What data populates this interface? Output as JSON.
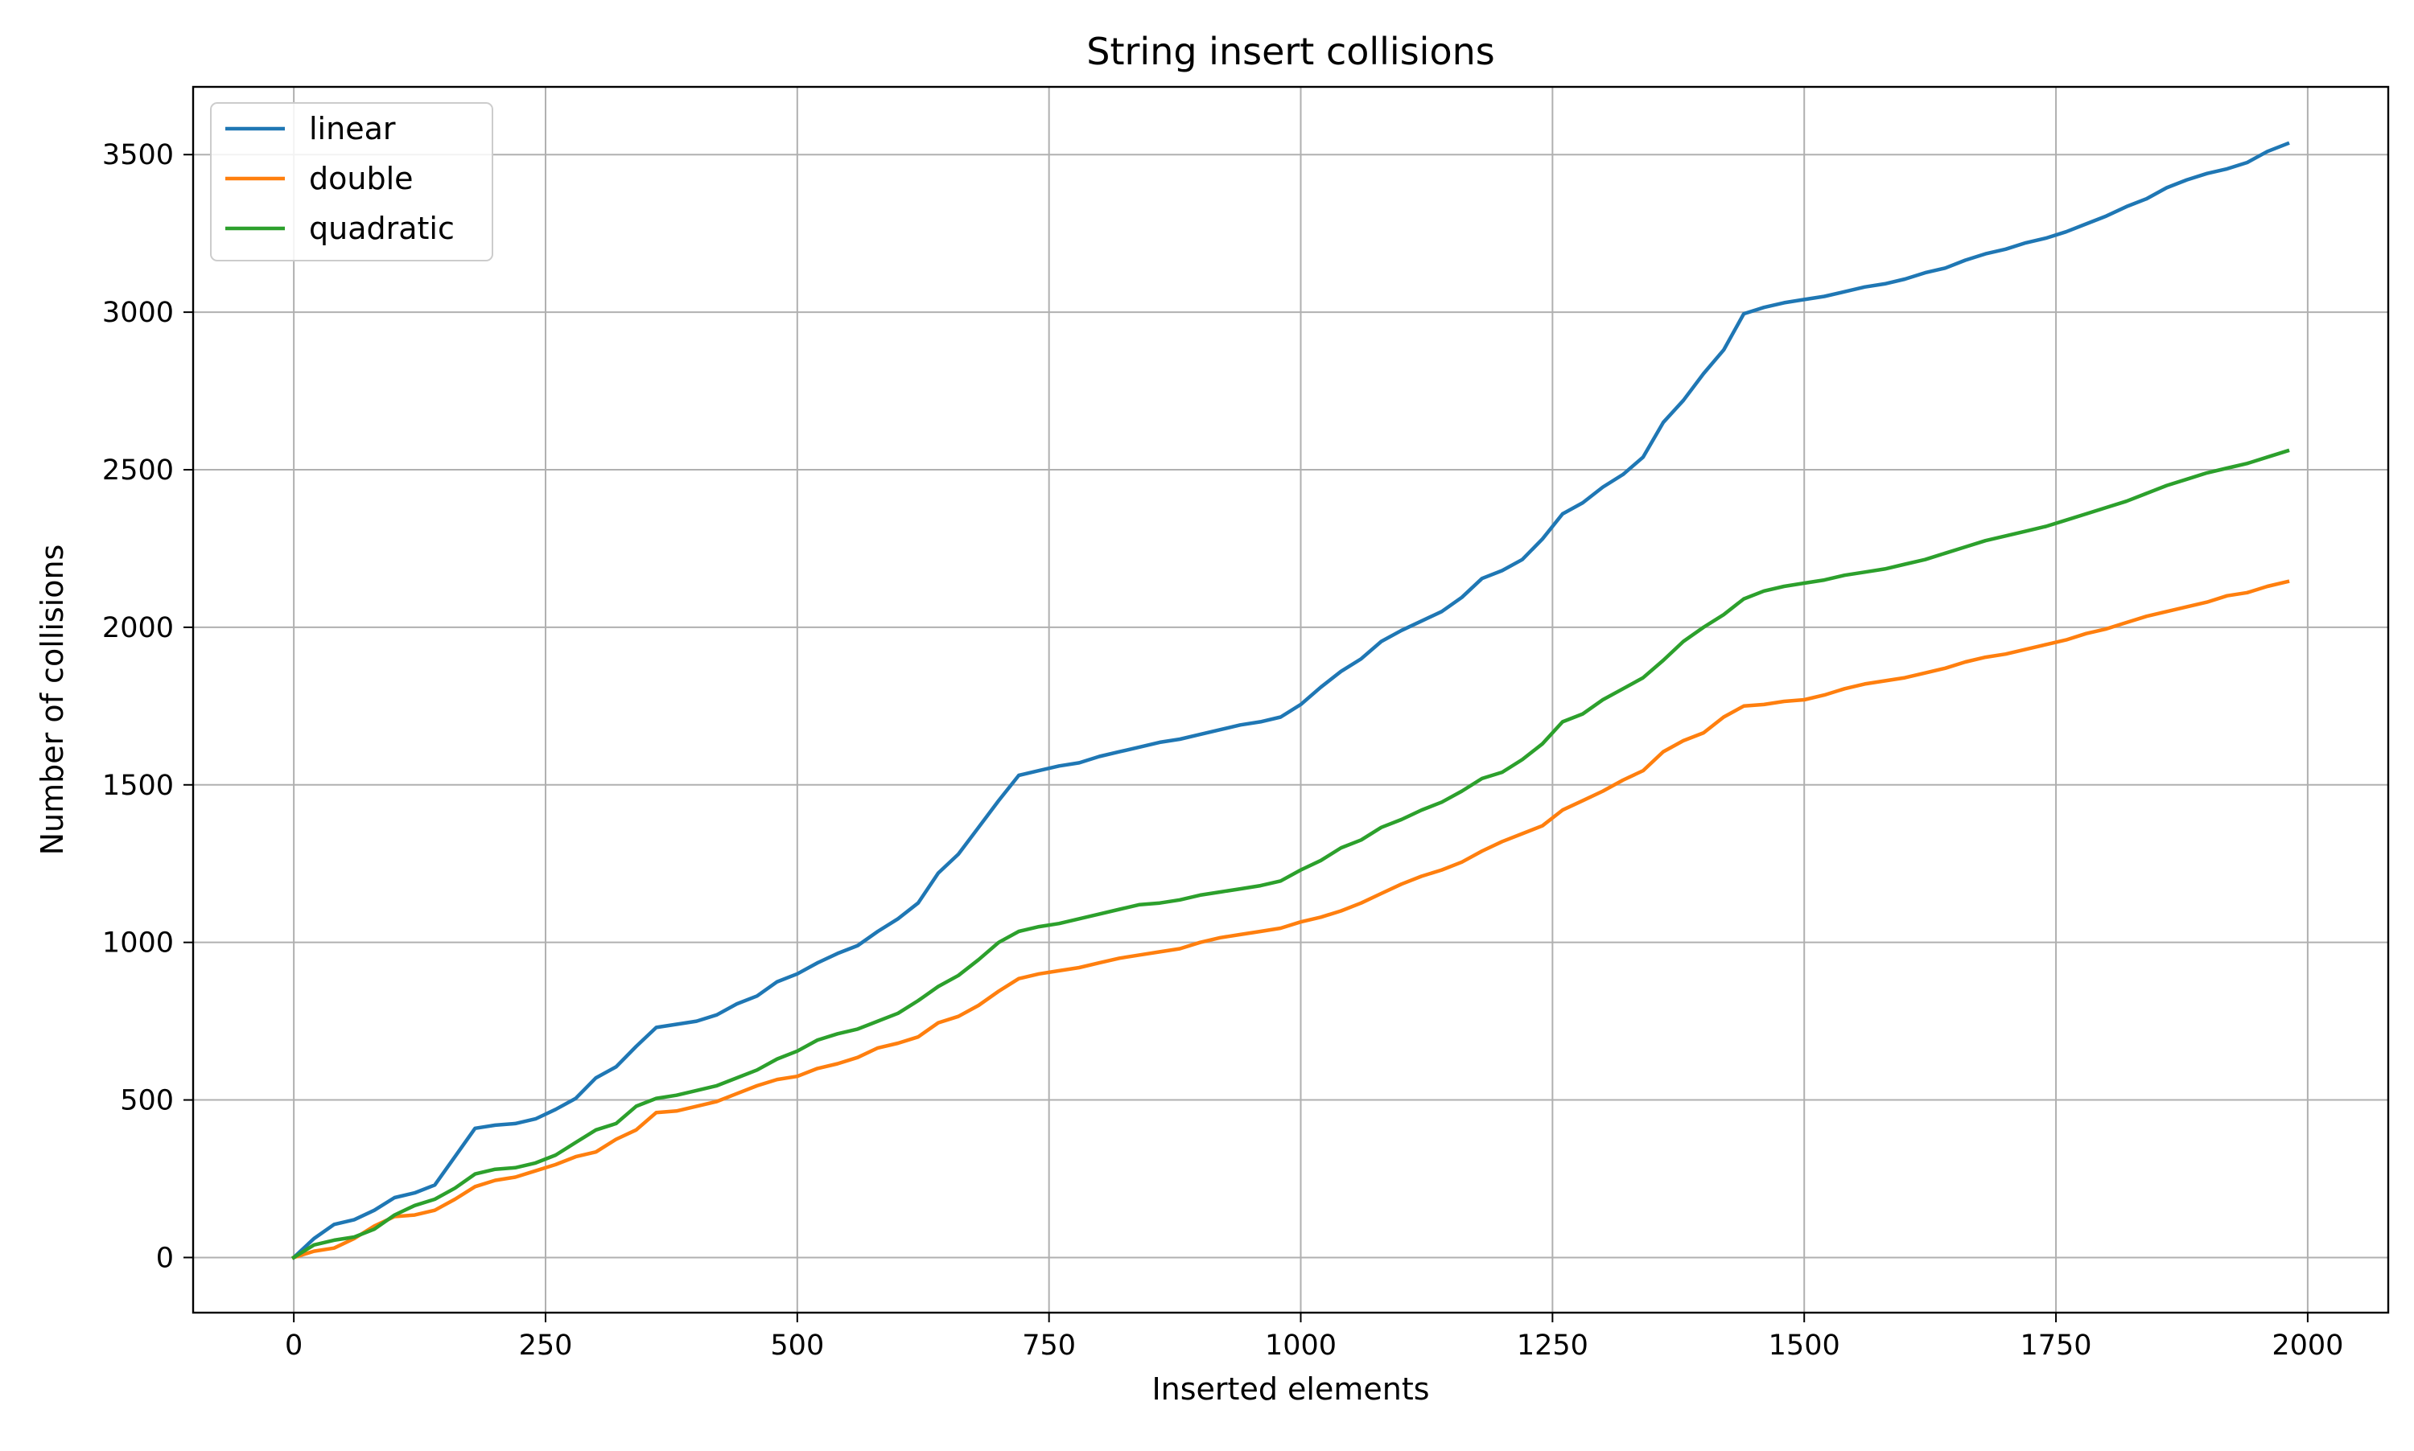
{
  "chart_data": {
    "type": "line",
    "title": "String insert collisions",
    "xlabel": "Inserted elements",
    "ylabel": "Number of collisions",
    "xlim": [
      -100,
      2080
    ],
    "ylim": [
      -175,
      3715
    ],
    "xticks": [
      0,
      250,
      500,
      750,
      1000,
      1250,
      1500,
      1750,
      2000
    ],
    "yticks": [
      0,
      500,
      1000,
      1500,
      2000,
      2500,
      3000,
      3500
    ],
    "grid": true,
    "legend_position": "top-left",
    "x": [
      0,
      20,
      40,
      60,
      80,
      100,
      120,
      140,
      160,
      180,
      200,
      220,
      240,
      260,
      280,
      300,
      320,
      340,
      360,
      380,
      400,
      420,
      440,
      460,
      480,
      500,
      520,
      540,
      560,
      580,
      600,
      620,
      640,
      660,
      680,
      700,
      720,
      740,
      760,
      780,
      800,
      820,
      840,
      860,
      880,
      900,
      920,
      940,
      960,
      980,
      1000,
      1020,
      1040,
      1060,
      1080,
      1100,
      1120,
      1140,
      1160,
      1180,
      1200,
      1220,
      1240,
      1260,
      1280,
      1300,
      1320,
      1340,
      1360,
      1380,
      1400,
      1420,
      1440,
      1460,
      1480,
      1500,
      1520,
      1540,
      1560,
      1580,
      1600,
      1620,
      1640,
      1660,
      1680,
      1700,
      1720,
      1740,
      1760,
      1780,
      1800,
      1820,
      1840,
      1860,
      1880,
      1900,
      1920,
      1940,
      1960,
      1980
    ],
    "series": [
      {
        "name": "linear",
        "color": "#1f77b4",
        "values": [
          0,
          60,
          105,
          120,
          150,
          190,
          205,
          230,
          320,
          410,
          420,
          425,
          440,
          470,
          505,
          570,
          605,
          670,
          730,
          740,
          750,
          770,
          805,
          830,
          875,
          900,
          935,
          965,
          990,
          1035,
          1075,
          1125,
          1220,
          1280,
          1365,
          1450,
          1530,
          1545,
          1560,
          1570,
          1590,
          1605,
          1620,
          1635,
          1645,
          1660,
          1675,
          1690,
          1700,
          1715,
          1755,
          1810,
          1860,
          1900,
          1955,
          1990,
          2020,
          2050,
          2095,
          2155,
          2180,
          2215,
          2280,
          2360,
          2395,
          2445,
          2485,
          2540,
          2650,
          2720,
          2805,
          2880,
          2995,
          3015,
          3030,
          3040,
          3050,
          3065,
          3080,
          3090,
          3105,
          3125,
          3140,
          3165,
          3185,
          3200,
          3220,
          3235,
          3255,
          3280,
          3305,
          3335,
          3360,
          3395,
          3420,
          3440,
          3455,
          3475,
          3510,
          3535
        ]
      },
      {
        "name": "double",
        "color": "#ff7f0e",
        "values": [
          0,
          20,
          30,
          60,
          100,
          130,
          135,
          150,
          185,
          225,
          245,
          255,
          275,
          295,
          320,
          335,
          375,
          405,
          460,
          465,
          480,
          495,
          520,
          545,
          565,
          575,
          600,
          615,
          635,
          665,
          680,
          700,
          745,
          765,
          800,
          845,
          885,
          900,
          910,
          920,
          935,
          950,
          960,
          970,
          980,
          1000,
          1015,
          1025,
          1035,
          1045,
          1065,
          1080,
          1100,
          1125,
          1155,
          1185,
          1210,
          1230,
          1255,
          1290,
          1320,
          1345,
          1370,
          1420,
          1450,
          1480,
          1515,
          1545,
          1605,
          1640,
          1665,
          1715,
          1750,
          1755,
          1765,
          1770,
          1785,
          1805,
          1820,
          1830,
          1840,
          1855,
          1870,
          1890,
          1905,
          1915,
          1930,
          1945,
          1960,
          1980,
          1995,
          2015,
          2035,
          2050,
          2065,
          2080,
          2100,
          2110,
          2130,
          2145
        ]
      },
      {
        "name": "quadratic",
        "color": "#2ca02c",
        "values": [
          0,
          40,
          55,
          65,
          90,
          135,
          165,
          185,
          220,
          265,
          280,
          285,
          300,
          325,
          365,
          405,
          425,
          480,
          505,
          515,
          530,
          545,
          570,
          595,
          630,
          655,
          690,
          710,
          725,
          750,
          775,
          815,
          860,
          895,
          945,
          1000,
          1035,
          1050,
          1060,
          1075,
          1090,
          1105,
          1120,
          1125,
          1135,
          1150,
          1160,
          1170,
          1180,
          1195,
          1230,
          1260,
          1300,
          1325,
          1365,
          1390,
          1420,
          1445,
          1480,
          1520,
          1540,
          1580,
          1630,
          1700,
          1725,
          1770,
          1805,
          1840,
          1895,
          1955,
          2000,
          2040,
          2090,
          2115,
          2130,
          2140,
          2150,
          2165,
          2175,
          2185,
          2200,
          2215,
          2235,
          2255,
          2275,
          2290,
          2305,
          2320,
          2340,
          2360,
          2380,
          2400,
          2425,
          2450,
          2470,
          2490,
          2505,
          2520,
          2540,
          2560
        ]
      }
    ]
  }
}
